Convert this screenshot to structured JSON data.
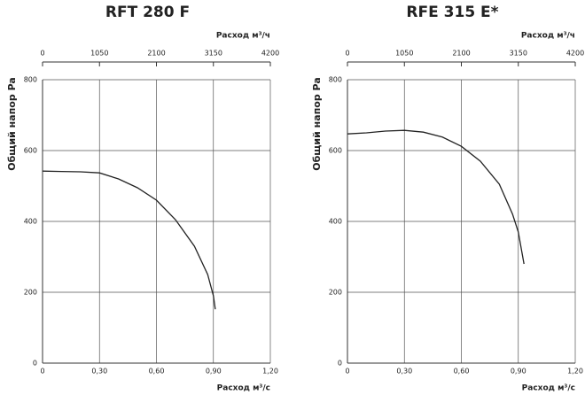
{
  "chart_data": [
    {
      "type": "line",
      "title": "RFT 280 F",
      "x_label": "Расход м³/с",
      "x2_label": "Расход м³/ч",
      "y_label": "Общий напор Pa",
      "x": [
        0,
        0.1,
        0.2,
        0.3,
        0.4,
        0.5,
        0.6,
        0.7,
        0.8,
        0.87,
        0.9,
        0.91
      ],
      "values": [
        542,
        541,
        540,
        537,
        520,
        495,
        460,
        405,
        330,
        250,
        190,
        152
      ],
      "color": "#222222",
      "xlim": [
        0,
        1.2
      ],
      "xticks": [
        0,
        {
          "value": 0.3,
          "label": "0,30"
        },
        {
          "value": 0.6,
          "label": "0,60"
        },
        {
          "value": 0.9,
          "label": "0,90"
        },
        {
          "value": 1.2,
          "label": "1,20"
        }
      ],
      "x2lim": [
        0,
        4200
      ],
      "x2ticks": [
        0,
        1050,
        2100,
        3150,
        4200
      ],
      "ylim": [
        0,
        800
      ],
      "yticks": [
        0,
        200,
        400,
        600,
        800
      ],
      "grid": true
    },
    {
      "type": "line",
      "title": "RFE 315 E*",
      "x_label": "Расход м³/с",
      "x2_label": "Расход м³/ч",
      "y_label": "Общий напор Pa",
      "x": [
        0,
        0.1,
        0.2,
        0.3,
        0.4,
        0.5,
        0.6,
        0.7,
        0.8,
        0.87,
        0.9,
        0.93
      ],
      "values": [
        647,
        650,
        655,
        657,
        652,
        638,
        612,
        570,
        505,
        420,
        370,
        280
      ],
      "color": "#222222",
      "xlim": [
        0,
        1.2
      ],
      "xticks": [
        0,
        {
          "value": 0.3,
          "label": "0,30"
        },
        {
          "value": 0.6,
          "label": "0,60"
        },
        {
          "value": 0.9,
          "label": "0,90"
        },
        {
          "value": 1.2,
          "label": "1,20"
        }
      ],
      "x2lim": [
        0,
        4200
      ],
      "x2ticks": [
        0,
        1050,
        2100,
        3150,
        4200
      ],
      "ylim": [
        0,
        800
      ],
      "yticks": [
        0,
        200,
        400,
        600,
        800
      ],
      "grid": true
    }
  ]
}
